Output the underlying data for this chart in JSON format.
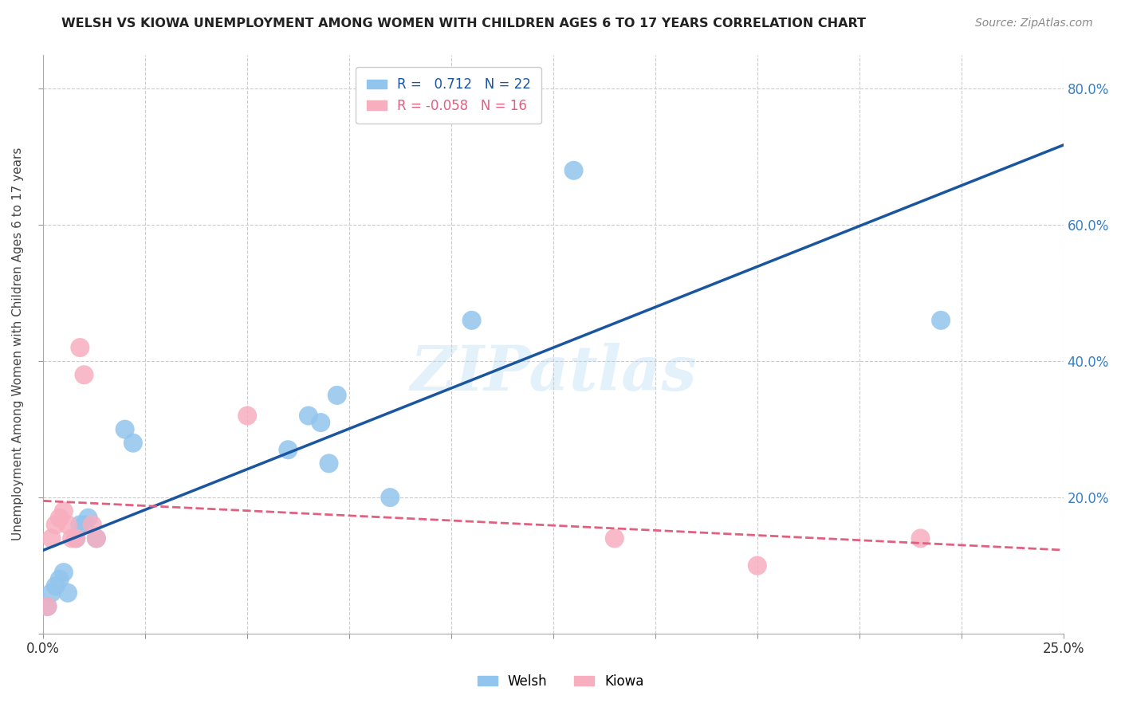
{
  "title": "WELSH VS KIOWA UNEMPLOYMENT AMONG WOMEN WITH CHILDREN AGES 6 TO 17 YEARS CORRELATION CHART",
  "source": "Source: ZipAtlas.com",
  "ylabel": "Unemployment Among Women with Children Ages 6 to 17 years",
  "xlim": [
    0.0,
    0.25
  ],
  "ylim": [
    0.0,
    0.85
  ],
  "yticks": [
    0.0,
    0.2,
    0.4,
    0.6,
    0.8
  ],
  "ytick_labels_right": [
    "",
    "20.0%",
    "40.0%",
    "60.0%",
    "80.0%"
  ],
  "xtick_first": "0.0%",
  "xtick_last": "25.0%",
  "welsh_color": "#92C5ED",
  "kiowa_color": "#F7AEBF",
  "welsh_line_color": "#1A56A0",
  "kiowa_line_color": "#E06080",
  "welsh_R": 0.712,
  "welsh_N": 22,
  "kiowa_R": -0.058,
  "kiowa_N": 16,
  "legend_label_welsh": "Welsh",
  "legend_label_kiowa": "Kiowa",
  "watermark": "ZIPatlas",
  "background_color": "#FFFFFF",
  "grid_color": "#CCCCCC",
  "welsh_x": [
    0.001,
    0.002,
    0.003,
    0.004,
    0.005,
    0.006,
    0.008,
    0.009,
    0.01,
    0.011,
    0.013,
    0.02,
    0.022,
    0.06,
    0.065,
    0.068,
    0.07,
    0.072,
    0.085,
    0.105,
    0.13,
    0.22
  ],
  "welsh_y": [
    0.04,
    0.06,
    0.07,
    0.08,
    0.09,
    0.06,
    0.14,
    0.16,
    0.16,
    0.17,
    0.14,
    0.3,
    0.28,
    0.27,
    0.32,
    0.31,
    0.25,
    0.35,
    0.2,
    0.46,
    0.68,
    0.46
  ],
  "kiowa_x": [
    0.001,
    0.002,
    0.003,
    0.004,
    0.005,
    0.006,
    0.007,
    0.008,
    0.009,
    0.01,
    0.012,
    0.013,
    0.05,
    0.14,
    0.175,
    0.215
  ],
  "kiowa_y": [
    0.04,
    0.14,
    0.16,
    0.17,
    0.18,
    0.16,
    0.14,
    0.14,
    0.42,
    0.38,
    0.16,
    0.14,
    0.32,
    0.14,
    0.1,
    0.14
  ]
}
